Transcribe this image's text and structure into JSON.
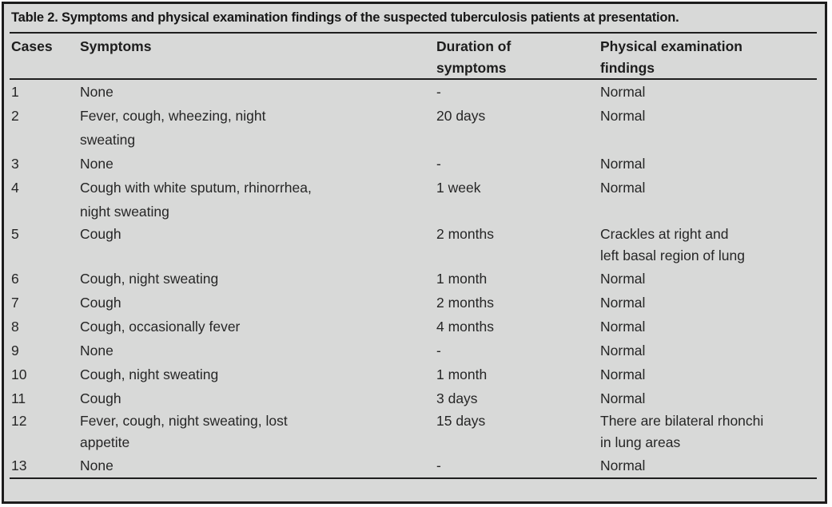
{
  "page": {
    "background": "#ffffff",
    "table_background": "#d8d9d8",
    "border_color": "#1c1c1c",
    "rule_color": "#1e1e1e",
    "text_color": "#262626"
  },
  "table": {
    "title": "Table 2. Symptoms and physical examination findings of the suspected tuberculosis patients at presentation.",
    "columns": [
      "Cases",
      "Symptoms",
      "Duration of\nsymptoms",
      "Physical examination\nfindings"
    ],
    "rows": [
      {
        "case": "1",
        "symptoms": "None",
        "duration": "-",
        "findings": "Normal"
      },
      {
        "case": "2",
        "symptoms": "Fever, cough, wheezing, night\nsweating",
        "duration": "20 days",
        "findings": "Normal"
      },
      {
        "case": "3",
        "symptoms": "None",
        "duration": "-",
        "findings": "Normal"
      },
      {
        "case": "4",
        "symptoms": "Cough with white sputum, rhinorrhea,\nnight sweating",
        "duration": "1 week",
        "findings": "Normal"
      },
      {
        "case": "5",
        "symptoms": "Cough",
        "duration": "2 months",
        "findings": "Crackles at right and\nleft basal region of lung"
      },
      {
        "case": "6",
        "symptoms": "Cough, night sweating",
        "duration": "1 month",
        "findings": "Normal"
      },
      {
        "case": "7",
        "symptoms": "Cough",
        "duration": "2 months",
        "findings": "Normal"
      },
      {
        "case": "8",
        "symptoms": "Cough, occasionally fever",
        "duration": "4 months",
        "findings": "Normal"
      },
      {
        "case": "9",
        "symptoms": "None",
        "duration": "-",
        "findings": "Normal"
      },
      {
        "case": "10",
        "symptoms": "Cough, night sweating",
        "duration": "1 month",
        "findings": "Normal"
      },
      {
        "case": "11",
        "symptoms": "Cough",
        "duration": "3 days",
        "findings": "Normal"
      },
      {
        "case": "12",
        "symptoms": "Fever, cough, night sweating, lost\nappetite",
        "duration": "15 days",
        "findings": "There are bilateral rhonchi\nin lung areas"
      },
      {
        "case": "13",
        "symptoms": "None",
        "duration": "-",
        "findings": "Normal"
      }
    ]
  }
}
